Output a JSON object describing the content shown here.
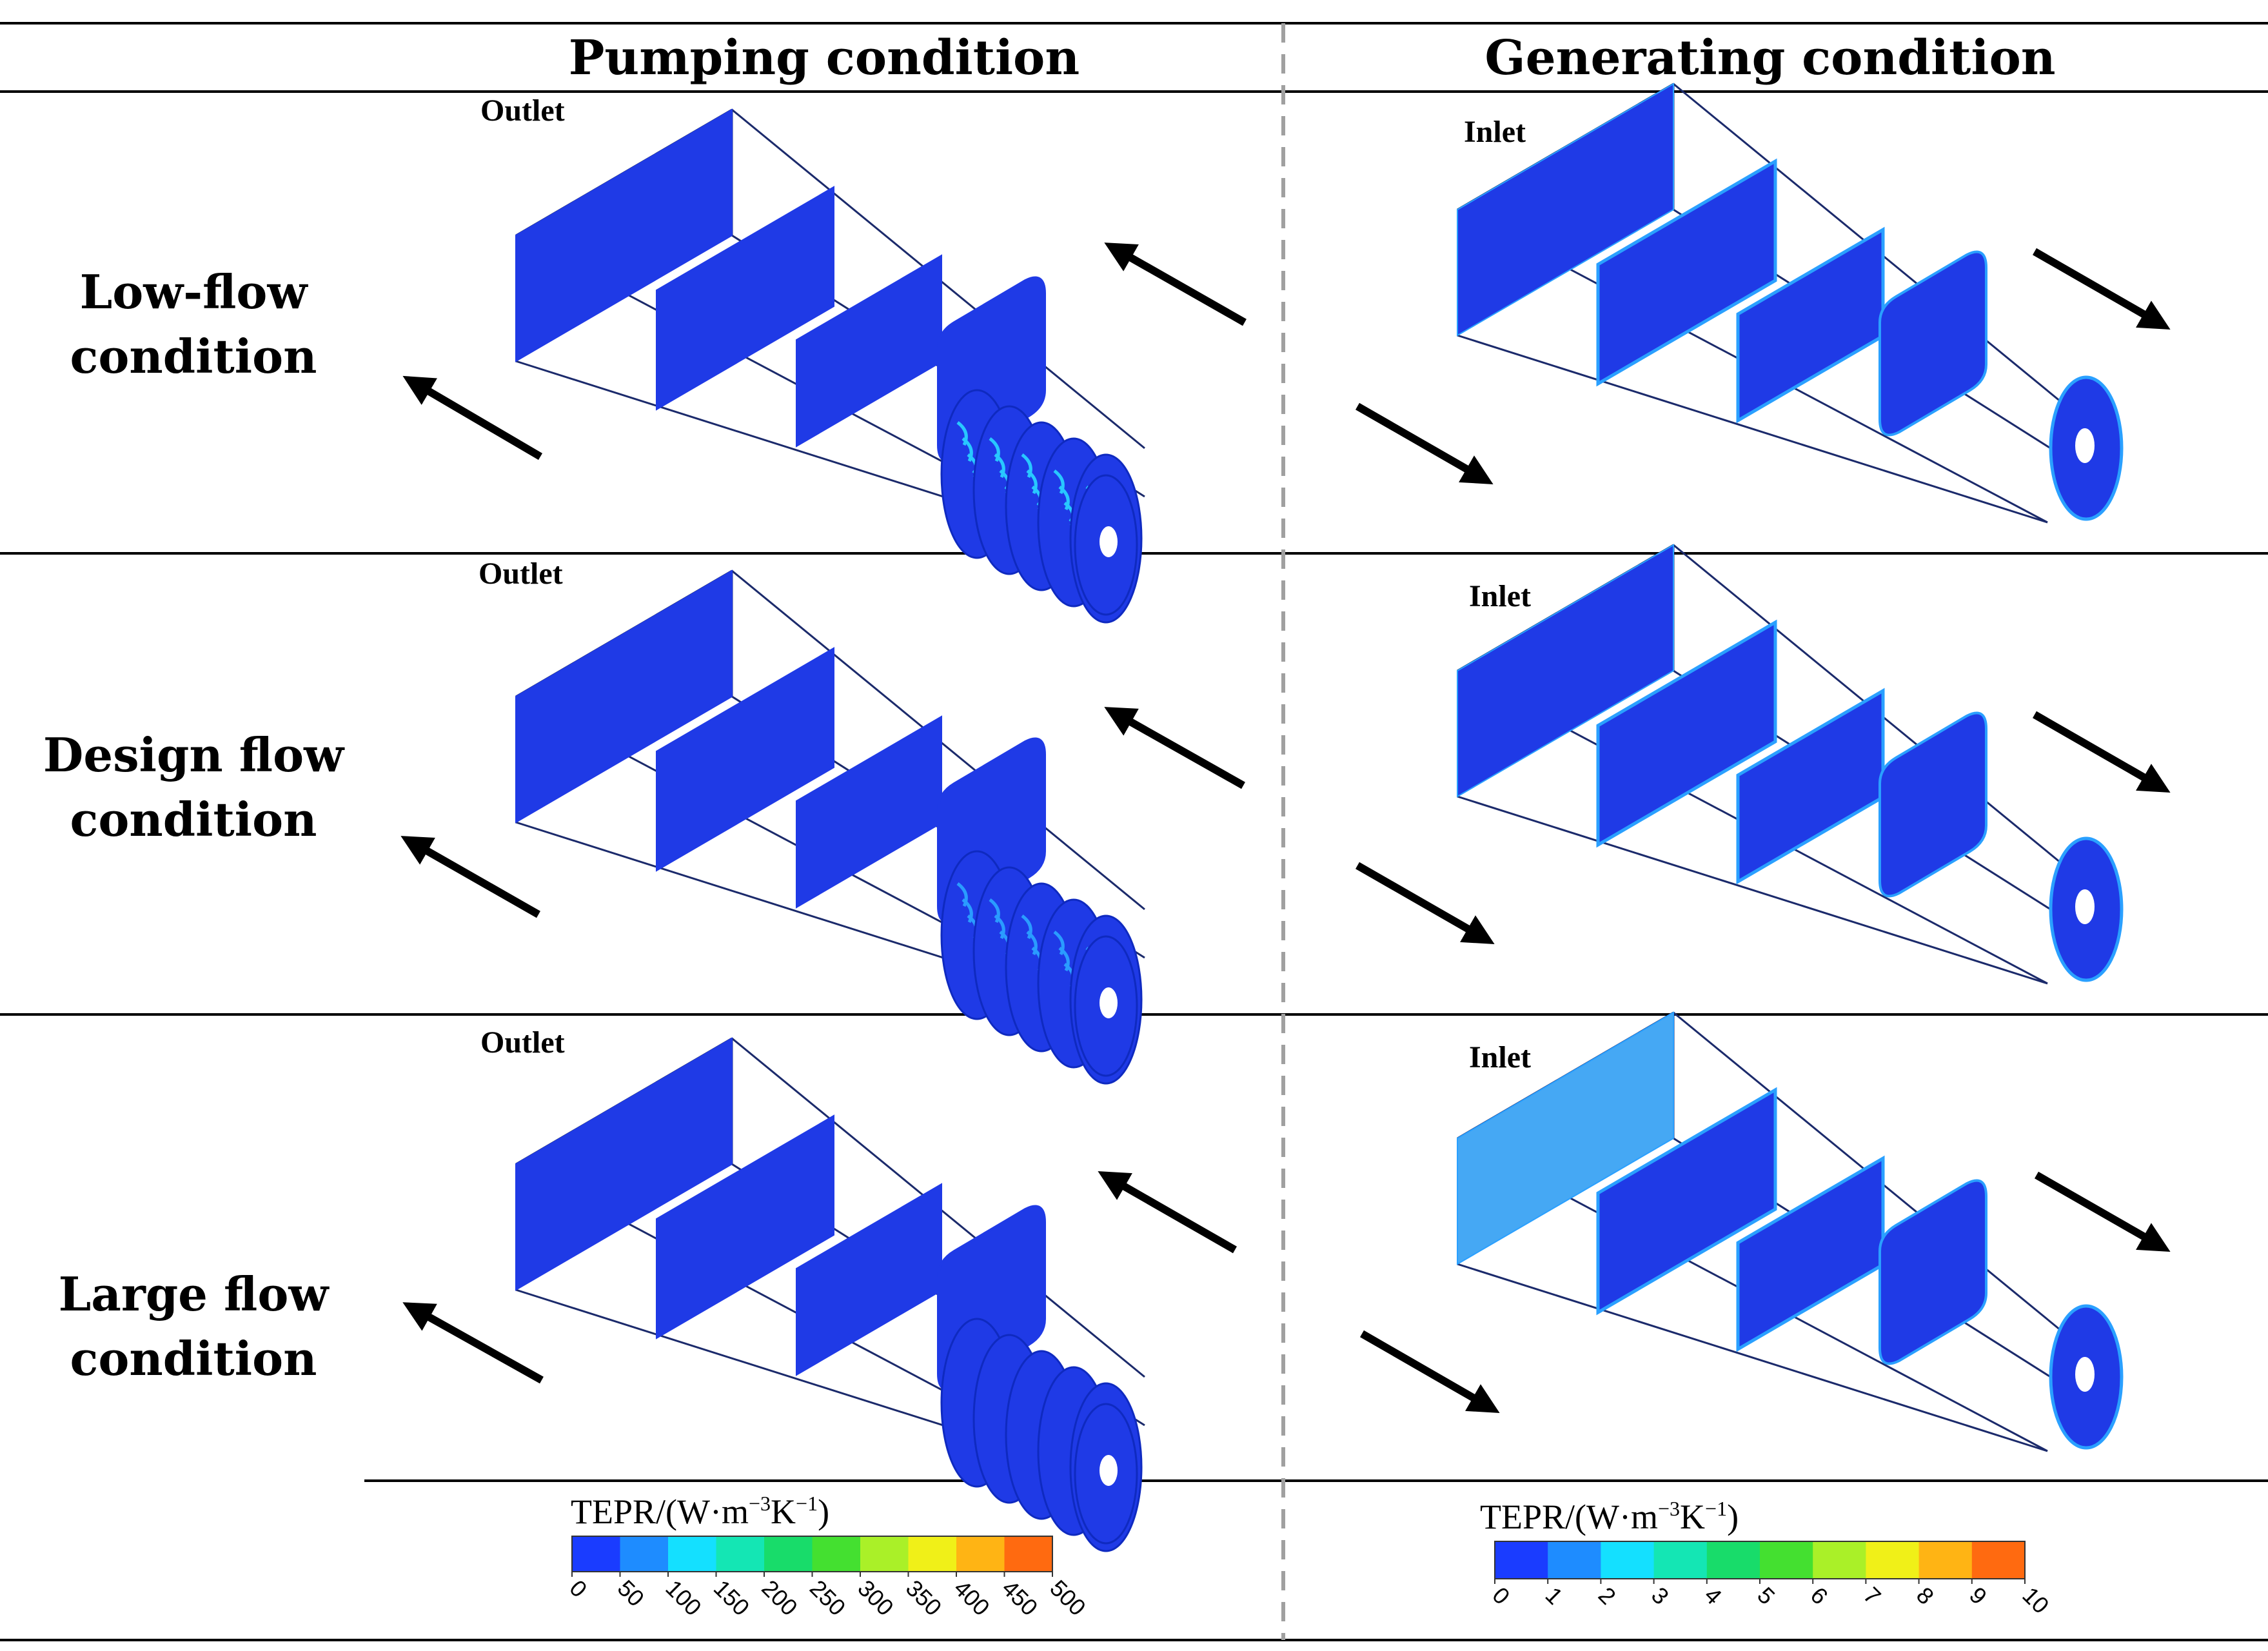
{
  "header": {
    "pumping": "Pumping condition",
    "generating": "Generating condition"
  },
  "rows": [
    {
      "label_line1": "Low-flow",
      "label_line2": "condition",
      "pump_port": "Outlet",
      "gen_port": "Inlet"
    },
    {
      "label_line1": "Design flow",
      "label_line2": "condition",
      "pump_port": "Outlet",
      "gen_port": "Inlet"
    },
    {
      "label_line1": "Large flow",
      "label_line2": "condition",
      "pump_port": "Outlet",
      "gen_port": "Inlet"
    }
  ],
  "legends": {
    "pumping": {
      "title_text": "TEPR/(W",
      "title_sub": "m",
      "title_exp1": "−3",
      "title_k": "K",
      "title_exp2": "−1",
      "title_close": ")",
      "ticks": [
        "0",
        "50",
        "100",
        "150",
        "200",
        "250",
        "300",
        "350",
        "400",
        "450",
        "500"
      ]
    },
    "generating": {
      "title_text": "TEPR/(W",
      "title_sub": "m",
      "title_exp1": "−3",
      "title_k": "K",
      "title_exp2": "−1",
      "title_close": ")",
      "ticks": [
        "0",
        "1",
        "2",
        "3",
        "4",
        "5",
        "6",
        "7",
        "8",
        "9",
        "10"
      ]
    }
  },
  "colormap": [
    "#1a3cff",
    "#1e8cff",
    "#14e0ff",
    "#14e6b4",
    "#18dc6a",
    "#44e030",
    "#aaf028",
    "#f0f018",
    "#ffb414",
    "#ff6a10",
    "#e83a1a"
  ],
  "colors": {
    "face": "#1f3ae6",
    "face_light": "#2aa0ff",
    "outline": "#1b2a6b",
    "rule": "#000000",
    "divider": "#a0a0a0"
  }
}
